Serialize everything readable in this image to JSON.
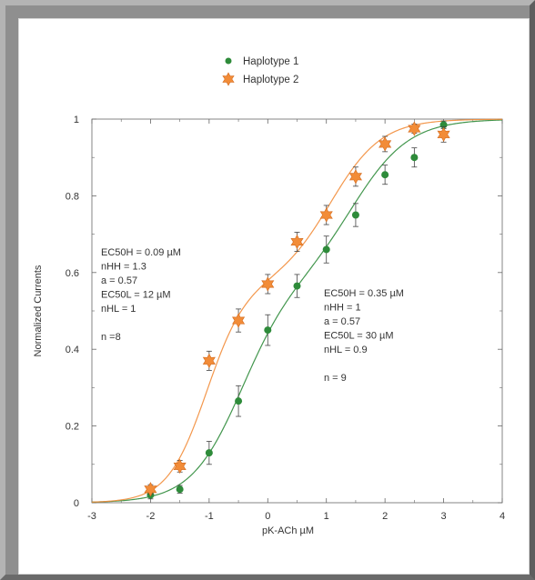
{
  "chart_data": {
    "type": "scatter",
    "title": "",
    "xlabel": "pK-ACh µM",
    "ylabel": "Normalized Currents",
    "xlim": [
      -3,
      4
    ],
    "ylim": [
      0,
      1
    ],
    "x_ticks": [
      -3,
      -2,
      -1,
      0,
      1,
      2,
      3,
      4
    ],
    "y_ticks": [
      0,
      0.2,
      0.4,
      0.6,
      0.8,
      1
    ],
    "x_tick_labels": [
      "-3",
      "-2",
      "-1",
      "0",
      "1",
      "2",
      "3",
      "4"
    ],
    "y_tick_labels": [
      "0",
      "0.2",
      "0.4",
      "0.6",
      "0.8",
      "1"
    ],
    "grid": false,
    "legend_position": "top-center",
    "series": [
      {
        "name": "Haplotype 1",
        "color": "#2e8b3a",
        "marker": "circle",
        "x": [
          -2,
          -1.5,
          -1,
          -0.5,
          0,
          0.5,
          1,
          1.5,
          2,
          2.5,
          3
        ],
        "y": [
          0.02,
          0.035,
          0.13,
          0.265,
          0.45,
          0.565,
          0.66,
          0.75,
          0.855,
          0.9,
          0.985
        ],
        "error": [
          0.01,
          0.01,
          0.03,
          0.04,
          0.04,
          0.03,
          0.035,
          0.03,
          0.025,
          0.025,
          0.01
        ],
        "fit": {
          "EC50H": 0.35,
          "nHH": 1,
          "a": 0.57,
          "EC50L": 30,
          "nHL": 0.9
        }
      },
      {
        "name": "Haplotype 2",
        "color": "#f28c38",
        "marker": "star",
        "x": [
          -2,
          -1.5,
          -1,
          -0.5,
          0,
          0.5,
          1,
          1.5,
          2,
          2.5,
          3
        ],
        "y": [
          0.035,
          0.095,
          0.37,
          0.475,
          0.57,
          0.68,
          0.75,
          0.85,
          0.935,
          0.975,
          0.96
        ],
        "error": [
          0.012,
          0.015,
          0.025,
          0.03,
          0.025,
          0.025,
          0.025,
          0.025,
          0.02,
          0.012,
          0.02
        ],
        "fit": {
          "EC50H": 0.09,
          "nHH": 1.3,
          "a": 0.57,
          "EC50L": 12,
          "nHL": 1
        }
      }
    ],
    "annotations": [
      [
        "EC50H = 0.09 µM",
        "nHH = 1.3",
        "a = 0.57",
        "EC50L = 12 µM",
        "nHL = 1",
        "",
        "n =8"
      ],
      [
        "EC50H = 0.35 µM",
        "nHH = 1",
        "a = 0.57",
        "EC50L = 30 µM",
        "nHL = 0.9",
        "",
        "n = 9"
      ]
    ]
  }
}
